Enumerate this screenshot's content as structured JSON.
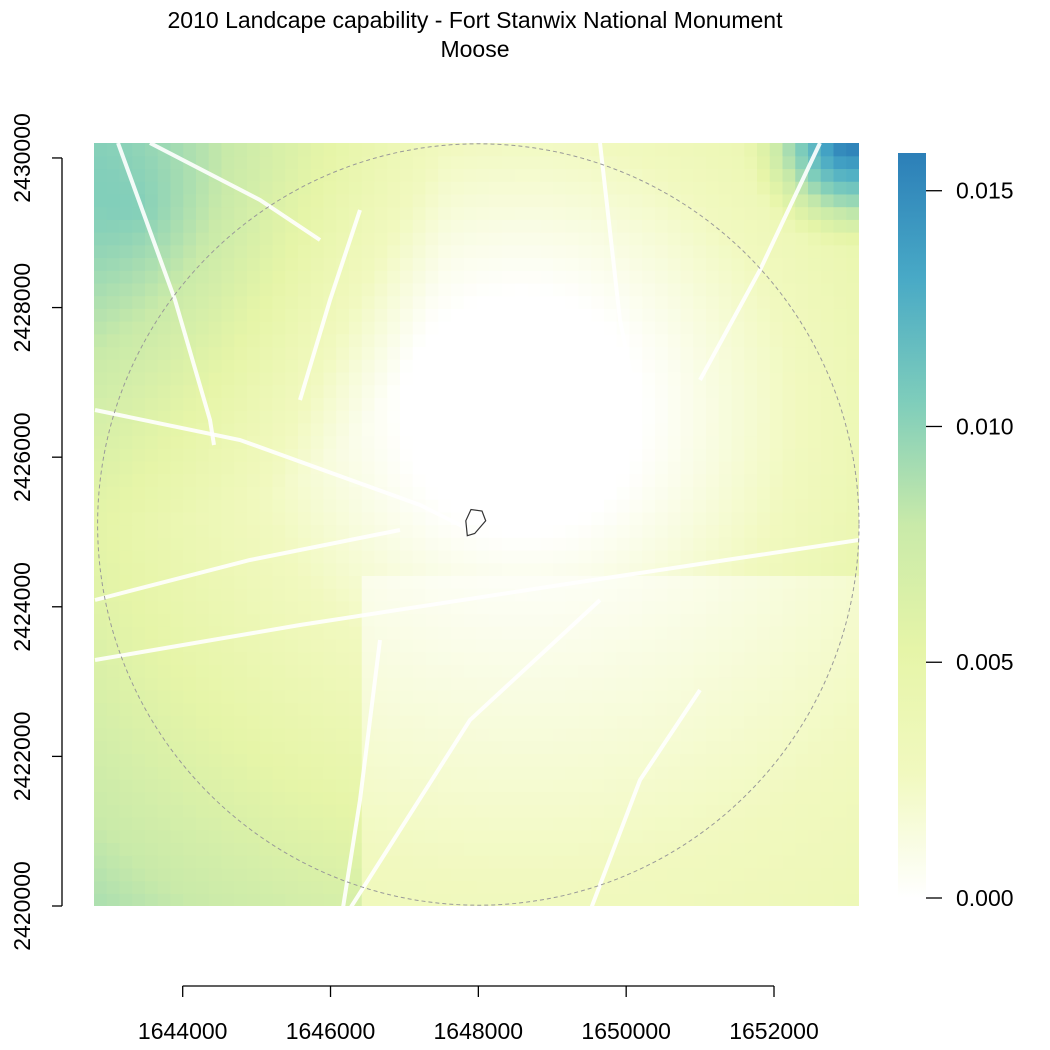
{
  "chart_data": {
    "type": "heatmap",
    "title": "2010 Landcape capability - Fort Stanwix National Monument",
    "subtitle": "Moose",
    "xlabel": "",
    "ylabel": "",
    "x_ticks": [
      1644000,
      1646000,
      1648000,
      1650000,
      1652000
    ],
    "y_ticks": [
      2420000,
      2422000,
      2424000,
      2426000,
      2428000,
      2430000
    ],
    "xlim": [
      1642800,
      1653150
    ],
    "ylim": [
      2420000,
      2430200
    ],
    "x_ticks_labels": [
      "1644000",
      "1646000",
      "1648000",
      "1650000",
      "1652000"
    ],
    "y_ticks_labels": [
      "2420000",
      "2422000",
      "2424000",
      "2426000",
      "2428000",
      "2430000"
    ],
    "colorbar": {
      "min": 0.0,
      "max": 0.0158,
      "ticks": [
        0.0,
        0.005,
        0.01,
        0.015
      ],
      "tick_labels": [
        "0.000",
        "0.005",
        "0.010",
        "0.015"
      ],
      "colors": [
        "#ffffff",
        "#f1f9bf",
        "#e6f5a8",
        "#c9eaa9",
        "#7ecdbb",
        "#48a9c6",
        "#2c7fb8"
      ]
    },
    "grid": false,
    "legend": "right",
    "overlays": [
      {
        "name": "buffer-boundary",
        "style": "dashed",
        "color": "#999999",
        "center": [
          1648000,
          2425100
        ],
        "radius": 5150
      },
      {
        "name": "monument-boundary",
        "style": "solid",
        "color": "#333333",
        "polygon": [
          [
            1647850,
            2424950
          ],
          [
            1647950,
            2424980
          ],
          [
            1648100,
            2425150
          ],
          [
            1648050,
            2425280
          ],
          [
            1647900,
            2425300
          ],
          [
            1647830,
            2425150
          ]
        ]
      }
    ],
    "value_field": {
      "description_hidden": true,
      "peaks": [
        {
          "x": 1643400,
          "y": 2429300,
          "value": 0.0125
        },
        {
          "x": 1653000,
          "y": 2430200,
          "value": 0.0155
        }
      ],
      "zero_center": [
        1648600,
        2426600
      ]
    }
  }
}
